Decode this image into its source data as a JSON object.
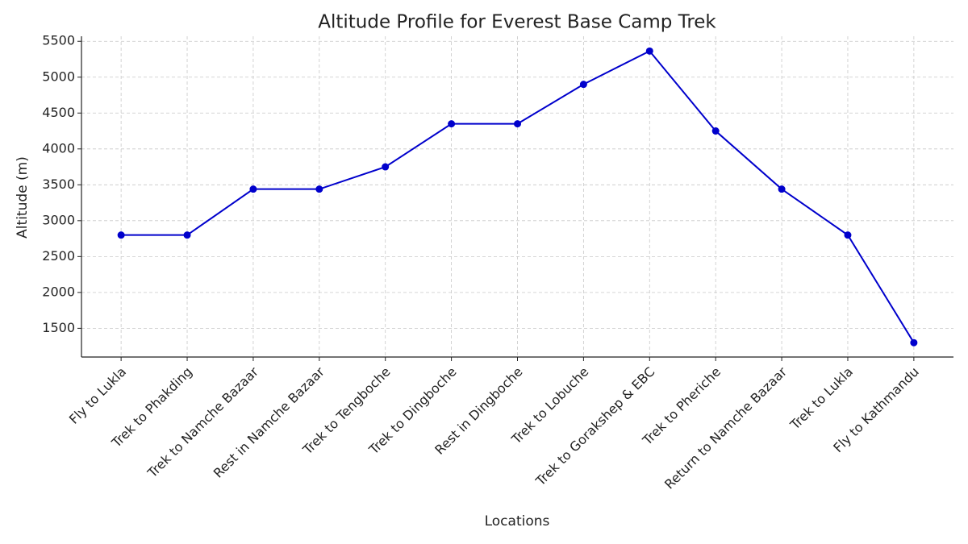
{
  "chart_data": {
    "type": "line",
    "title": "Altitude Profile for Everest Base Camp Trek",
    "x_label": "Locations",
    "y_label": "Altitude (m)",
    "categories": [
      "Fly to Lukla",
      "Trek to Phakding",
      "Trek to Namche Bazaar",
      "Rest in Namche Bazaar",
      "Trek to Tengboche",
      "Trek to Dingboche",
      "Rest in Dingboche",
      "Trek to Lobuche",
      "Trek to Gorakshep & EBC",
      "Trek to Pheriche",
      "Return to Namche Bazaar",
      "Trek to Lukla",
      "Fly to Kathmandu"
    ],
    "values": [
      2800,
      2800,
      3440,
      3440,
      3750,
      4350,
      4350,
      4900,
      5364,
      4250,
      3440,
      2800,
      1300
    ],
    "color": "#0000cc",
    "ylim": [
      1100,
      5570
    ],
    "yticks": [
      1500,
      2000,
      2500,
      3000,
      3500,
      4000,
      4500,
      5000,
      5500
    ],
    "grid": true
  }
}
